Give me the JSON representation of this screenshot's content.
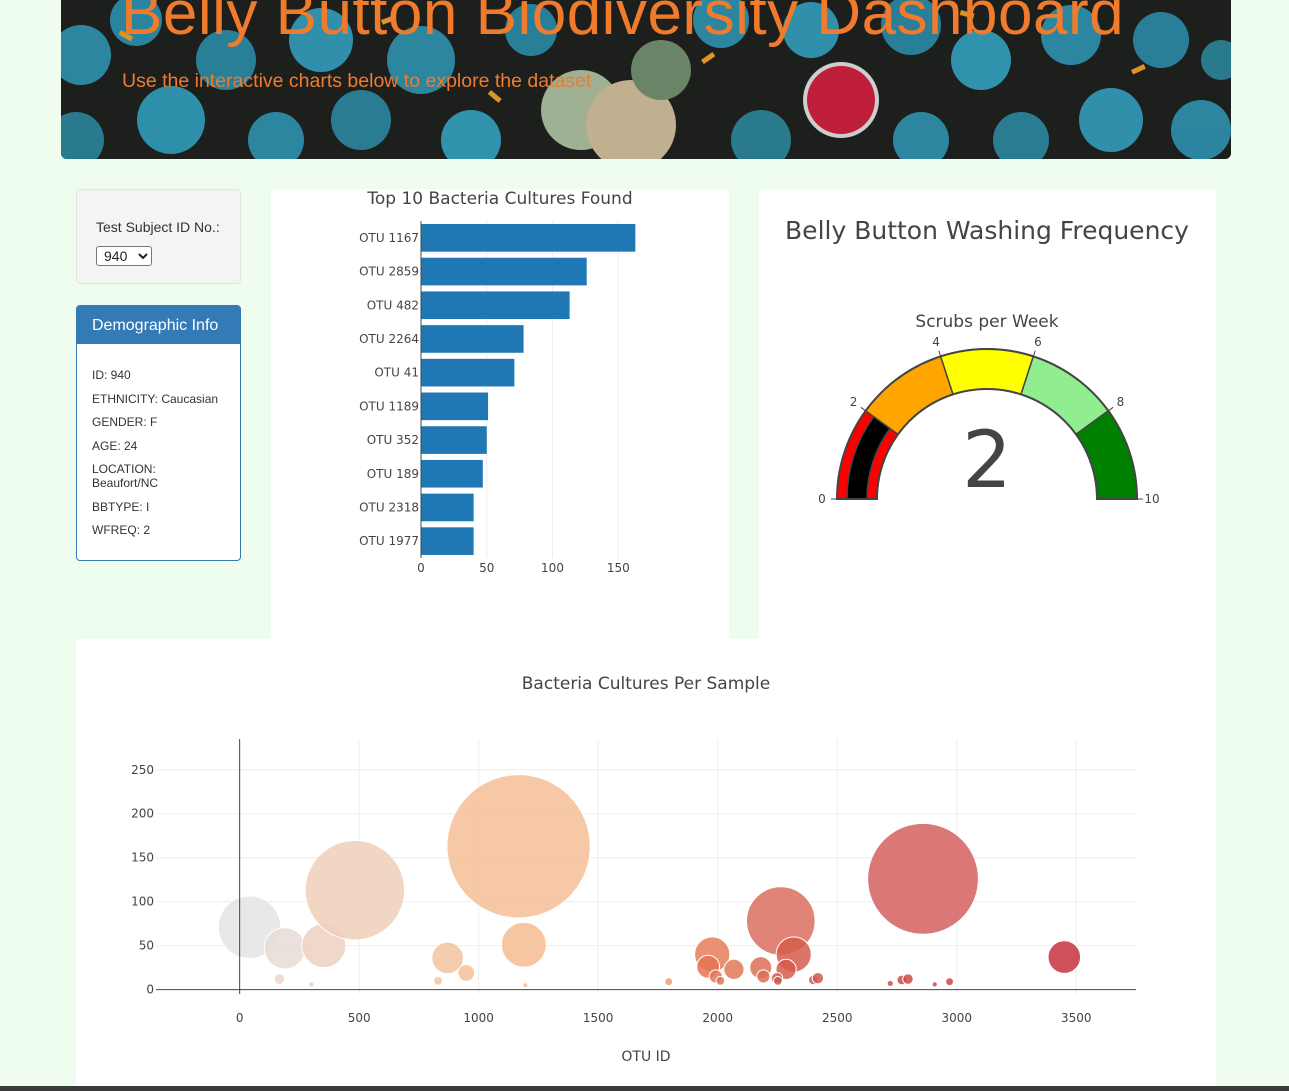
{
  "header": {
    "title": "Belly Button Biodiversity Dashboard",
    "subtitle": "Use the interactive charts below to explore the dataset",
    "accent_color": "#f07b2c"
  },
  "selector": {
    "label": "Test Subject ID No.:",
    "selected": "940"
  },
  "demographics": {
    "heading": "Demographic Info",
    "lines": [
      "ID: 940",
      "ETHNICITY: Caucasian",
      "GENDER: F",
      "AGE: 24",
      "LOCATION: Beaufort/NC",
      "BBTYPE: I",
      "WFREQ: 2"
    ],
    "header_color": "#337ab7"
  },
  "chart_data": [
    {
      "type": "bar",
      "orientation": "horizontal",
      "title": "Top 10 Bacteria Cultures Found",
      "categories": [
        "OTU 1167",
        "OTU 2859",
        "OTU 482",
        "OTU 2264",
        "OTU 41",
        "OTU 1189",
        "OTU 352",
        "OTU 189",
        "OTU 2318",
        "OTU 1977"
      ],
      "values": [
        163,
        126,
        113,
        78,
        71,
        51,
        50,
        47,
        40,
        40
      ],
      "xlim": [
        0,
        165
      ],
      "xticks": [
        0,
        50,
        100,
        150
      ],
      "color": "#1f77b4",
      "grid": true
    },
    {
      "type": "gauge",
      "title": "Belly Button Washing Frequency",
      "subtitle": "Scrubs per Week",
      "value": 2,
      "range": [
        0,
        10
      ],
      "ticks": [
        0,
        2,
        4,
        6,
        8,
        10
      ],
      "steps": [
        {
          "range": [
            0,
            2
          ],
          "color": "#ff0000"
        },
        {
          "range": [
            2,
            4
          ],
          "color": "#ffa500"
        },
        {
          "range": [
            4,
            6
          ],
          "color": "#ffff00"
        },
        {
          "range": [
            6,
            8
          ],
          "color": "#90ee90"
        },
        {
          "range": [
            8,
            10
          ],
          "color": "#008000"
        }
      ],
      "bar_color": "#000000"
    },
    {
      "type": "scatter",
      "mode": "bubble",
      "title": "Bacteria Cultures Per Sample",
      "xlabel": "OTU ID",
      "ylabel": "",
      "xlim": [
        -350,
        3750
      ],
      "ylim": [
        -5,
        285
      ],
      "xticks": [
        0,
        500,
        1000,
        1500,
        2000,
        2500,
        3000,
        3500
      ],
      "yticks": [
        0,
        50,
        100,
        150,
        200,
        250
      ],
      "grid": true,
      "points": [
        {
          "x": 41,
          "y": 71,
          "color": "#e4e4e4"
        },
        {
          "x": 189,
          "y": 47,
          "color": "#e6dcd6"
        },
        {
          "x": 166,
          "y": 12,
          "color": "#e8d6ce"
        },
        {
          "x": 300,
          "y": 6,
          "color": "#eacdbf"
        },
        {
          "x": 352,
          "y": 50,
          "color": "#ecd0c0"
        },
        {
          "x": 482,
          "y": 113,
          "color": "#efcfb8"
        },
        {
          "x": 830,
          "y": 10,
          "color": "#f1c3a3"
        },
        {
          "x": 870,
          "y": 36,
          "color": "#f3c3a0"
        },
        {
          "x": 948,
          "y": 19,
          "color": "#f3c19b"
        },
        {
          "x": 1167,
          "y": 163,
          "color": "#f4be96"
        },
        {
          "x": 1189,
          "y": 51,
          "color": "#f4bb90"
        },
        {
          "x": 1195,
          "y": 5,
          "color": "#f4ba8f"
        },
        {
          "x": 1795,
          "y": 9,
          "color": "#ee9c72"
        },
        {
          "x": 1977,
          "y": 40,
          "color": "#e67d5b"
        },
        {
          "x": 1960,
          "y": 26,
          "color": "#e57556"
        },
        {
          "x": 1992,
          "y": 15,
          "color": "#e47656"
        },
        {
          "x": 2011,
          "y": 10,
          "color": "#e37656"
        },
        {
          "x": 2068,
          "y": 23,
          "color": "#e07858"
        },
        {
          "x": 2180,
          "y": 25,
          "color": "#dd6f55"
        },
        {
          "x": 2191,
          "y": 15,
          "color": "#dc6e55"
        },
        {
          "x": 2264,
          "y": 78,
          "color": "#d96f5e"
        },
        {
          "x": 2318,
          "y": 40,
          "color": "#d65d4e"
        },
        {
          "x": 2286,
          "y": 23,
          "color": "#d65b4d"
        },
        {
          "x": 2248,
          "y": 13,
          "color": "#d55a4c"
        },
        {
          "x": 2252,
          "y": 10,
          "color": "#d45a4c"
        },
        {
          "x": 2400,
          "y": 11,
          "color": "#d35a4c"
        },
        {
          "x": 2419,
          "y": 13,
          "color": "#d35a4c"
        },
        {
          "x": 2859,
          "y": 126,
          "color": "#d3605f"
        },
        {
          "x": 2722,
          "y": 7,
          "color": "#cf4e49"
        },
        {
          "x": 2770,
          "y": 11,
          "color": "#ce4c48"
        },
        {
          "x": 2796,
          "y": 12,
          "color": "#ce4b48"
        },
        {
          "x": 2908,
          "y": 6,
          "color": "#cc4846"
        },
        {
          "x": 2970,
          "y": 9,
          "color": "#cb4646"
        },
        {
          "x": 3450,
          "y": 37,
          "color": "#c6323f"
        }
      ]
    }
  ]
}
